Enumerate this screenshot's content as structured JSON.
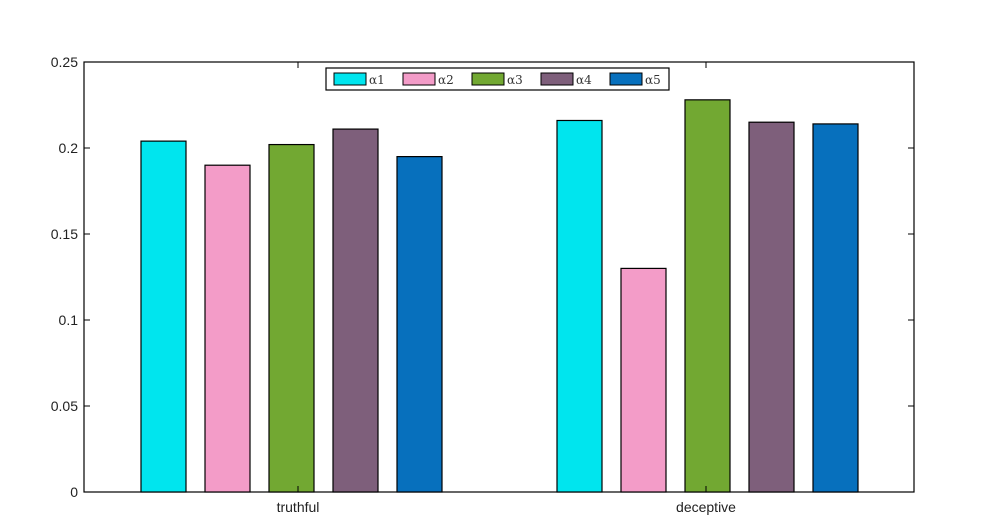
{
  "chart_data": {
    "type": "bar",
    "categories": [
      "truthful",
      "deceptive"
    ],
    "series": [
      {
        "name": "α1",
        "color": "#00e5ee",
        "values": [
          0.204,
          0.216
        ]
      },
      {
        "name": "α2",
        "color": "#f39cc8",
        "values": [
          0.19,
          0.13
        ]
      },
      {
        "name": "α3",
        "color": "#72a832",
        "values": [
          0.202,
          0.228
        ]
      },
      {
        "name": "α4",
        "color": "#7e5f7b",
        "values": [
          0.211,
          0.215
        ]
      },
      {
        "name": "α5",
        "color": "#0770bd",
        "values": [
          0.195,
          0.214
        ]
      }
    ],
    "yticks": [
      "0",
      "0.05",
      "0.1",
      "0.15",
      "0.2",
      "0.25"
    ],
    "ylim": [
      0,
      0.25
    ],
    "grid": false,
    "legend_position": "top-center"
  }
}
